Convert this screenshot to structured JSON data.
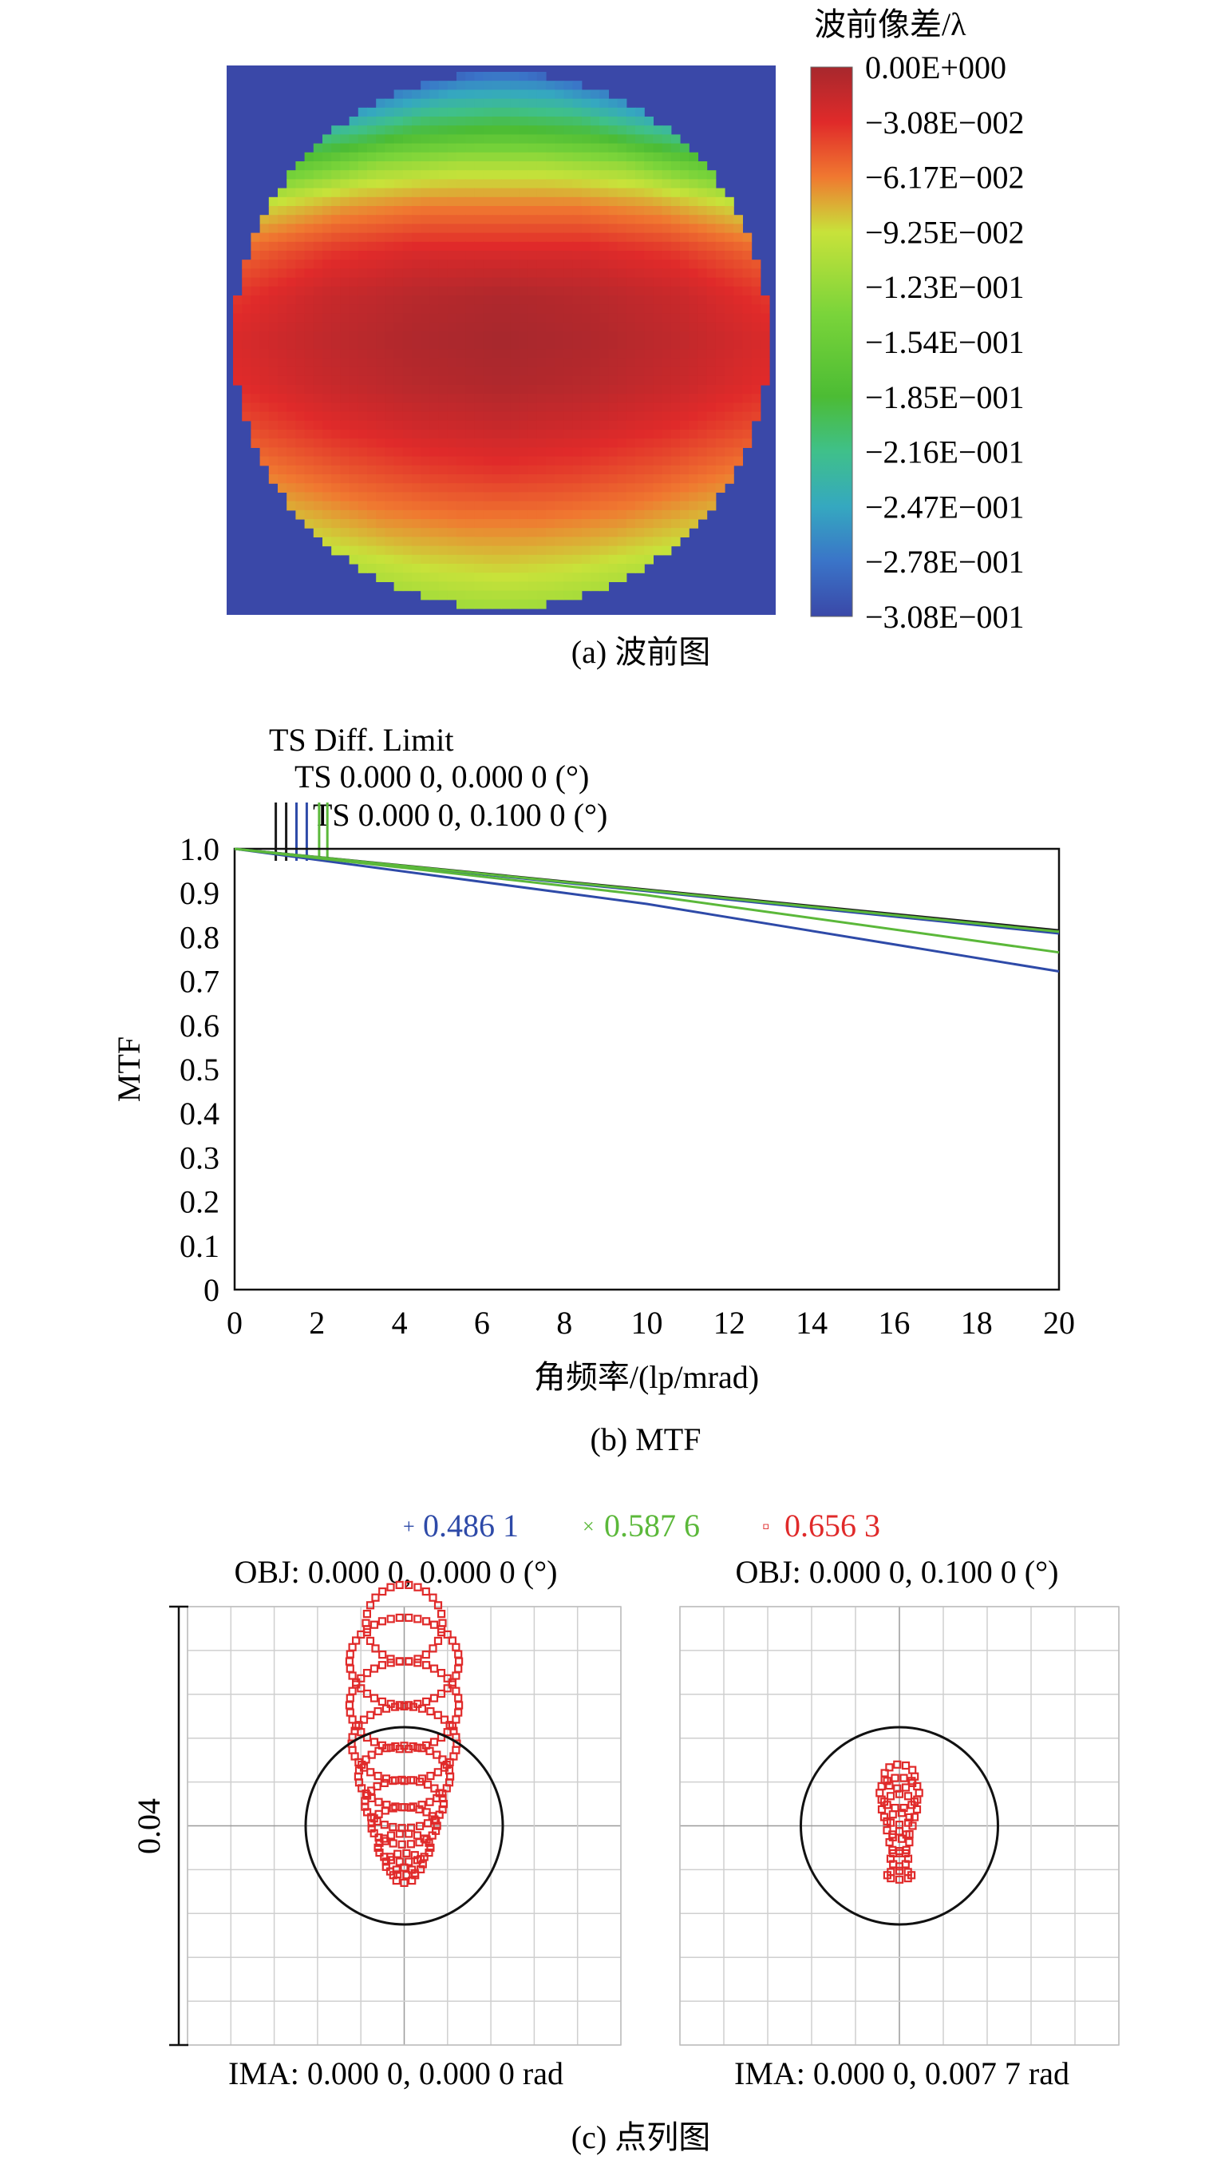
{
  "chart_data": [
    {
      "type": "heatmap",
      "panel_caption": "(a) 波前图",
      "colorbar_title": "波前像差/λ",
      "colorbar_ticks": [
        "0.00E+000",
        "−3.08E−002",
        "−6.17E−002",
        "−9.25E−002",
        "−1.23E−001",
        "−1.54E−001",
        "−1.85E−001",
        "−2.16E−001",
        "−2.47E−001",
        "−2.78E−001",
        "−3.08E−001"
      ],
      "value_range": [
        -0.308,
        0.0
      ],
      "colormap": [
        "#a7282d",
        "#e02a2a",
        "#f07830",
        "#c8e23a",
        "#7ad43a",
        "#4cbc34",
        "#3fc08a",
        "#35a8c0",
        "#3a74c8",
        "#3a48a8"
      ],
      "background_color": "#3a48a8",
      "rows": [
        [
          -0.29,
          -0.28,
          -0.28,
          -0.29
        ],
        [
          -0.24,
          -0.2,
          -0.19,
          -0.2,
          -0.24
        ],
        [
          -0.16,
          -0.13,
          -0.12,
          -0.12,
          -0.13,
          -0.16
        ],
        [
          -0.1,
          -0.08,
          -0.07,
          -0.07,
          -0.07,
          -0.08,
          -0.1
        ],
        [
          -0.06,
          -0.04,
          -0.03,
          -0.03,
          -0.03,
          -0.04,
          -0.06
        ],
        [
          -0.04,
          -0.02,
          -0.01,
          -0.005,
          -0.01,
          -0.02,
          -0.04
        ],
        [
          -0.03,
          -0.015,
          -0.005,
          0.0,
          -0.005,
          -0.015,
          -0.03
        ],
        [
          -0.035,
          -0.02,
          -0.01,
          -0.005,
          -0.01,
          -0.02,
          -0.035
        ],
        [
          -0.05,
          -0.035,
          -0.025,
          -0.02,
          -0.025,
          -0.035,
          -0.05
        ],
        [
          -0.07,
          -0.055,
          -0.045,
          -0.04,
          -0.045,
          -0.055,
          -0.07
        ],
        [
          -0.09,
          -0.075,
          -0.068,
          -0.068,
          -0.075,
          -0.09
        ],
        [
          -0.11,
          -0.1,
          -0.095,
          -0.1,
          -0.11
        ],
        [
          -0.12,
          -0.12,
          -0.12,
          -0.12
        ]
      ]
    },
    {
      "type": "line",
      "panel_caption": "(b) MTF",
      "legend": [
        "TS Diff. Limit",
        "TS 0.000 0, 0.000 0 (°)",
        "TS 0.000 0, 0.100 0 (°)"
      ],
      "xlabel": "角频率/(lp/mrad)",
      "ylabel": "MTF",
      "xlim": [
        0,
        20
      ],
      "ylim": [
        0,
        1.0
      ],
      "xticks": [
        "0",
        "2",
        "4",
        "6",
        "8",
        "10",
        "12",
        "14",
        "16",
        "18",
        "20"
      ],
      "yticks": [
        "0",
        "0.1",
        "0.2",
        "0.3",
        "0.4",
        "0.5",
        "0.6",
        "0.7",
        "0.8",
        "0.9",
        "1.0"
      ],
      "series": [
        {
          "name": "TS Diff. Limit",
          "color": "#1a1a1a",
          "x": [
            0,
            20
          ],
          "y": [
            1.0,
            0.815
          ]
        },
        {
          "color": "#2e4aa8",
          "x": [
            0,
            20
          ],
          "y": [
            1.0,
            0.808
          ]
        },
        {
          "color": "#2e4aa8",
          "x": [
            0,
            10,
            20
          ],
          "y": [
            1.0,
            0.875,
            0.722
          ]
        },
        {
          "color": "#5bb83a",
          "x": [
            0,
            20
          ],
          "y": [
            1.0,
            0.812
          ]
        },
        {
          "color": "#5bb83a",
          "x": [
            0,
            10,
            20
          ],
          "y": [
            1.0,
            0.895,
            0.765
          ]
        }
      ],
      "markers": [
        {
          "color": "#1a1a1a",
          "x": 1.0
        },
        {
          "color": "#1a1a1a",
          "x": 1.25
        },
        {
          "color": "#2e4aa8",
          "x": 1.5
        },
        {
          "color": "#2e4aa8",
          "x": 1.75
        },
        {
          "color": "#5bb83a",
          "x": 2.05
        },
        {
          "color": "#5bb83a",
          "x": 2.25
        }
      ]
    },
    {
      "type": "scatter",
      "panel_caption": "(c) 点列图",
      "wavelengths": [
        {
          "label": "0.486 1",
          "color": "#2e4aa8",
          "symbol": "+"
        },
        {
          "label": "0.587 6",
          "color": "#5bb83a",
          "symbol": "×"
        },
        {
          "label": "0.656 3",
          "color": "#e02a2a",
          "symbol": "▫"
        }
      ],
      "scale_label": "0.04",
      "plots": [
        {
          "obj": "OBJ: 0.000 0, 0.000 0 (°)",
          "ima": "IMA: 0.000 0, 0.000 0 rad",
          "airy_radius": 0.009,
          "rings": [
            {
              "cy": 0.0185,
              "rx": 0.0035,
              "ry": 0.0035
            },
            {
              "cy": 0.015,
              "rx": 0.005,
              "ry": 0.004
            },
            {
              "cy": 0.011,
              "rx": 0.005,
              "ry": 0.004
            },
            {
              "cy": 0.0075,
              "rx": 0.0048,
              "ry": 0.0034
            },
            {
              "cy": 0.0045,
              "rx": 0.0042,
              "ry": 0.0028
            },
            {
              "cy": 0.002,
              "rx": 0.0036,
              "ry": 0.0022
            },
            {
              "cy": 0.0,
              "rx": 0.003,
              "ry": 0.0017
            },
            {
              "cy": -0.002,
              "rx": 0.0024,
              "ry": 0.0013
            },
            {
              "cy": -0.0035,
              "rx": 0.0017,
              "ry": 0.001
            },
            {
              "cy": -0.0045,
              "rx": 0.001,
              "ry": 0.0007
            }
          ]
        },
        {
          "obj": "OBJ: 0.000 0, 0.100 0 (°)",
          "ima": "IMA: 0.000 0, 0.007 7 rad",
          "airy_radius": 0.009,
          "rings": [
            {
              "cy": 0.0045,
              "rx": 0.0014,
              "ry": 0.0011
            },
            {
              "cy": 0.003,
              "rx": 0.0018,
              "ry": 0.0014
            },
            {
              "cy": 0.0015,
              "rx": 0.0016,
              "ry": 0.0014
            },
            {
              "cy": 0.0,
              "rx": 0.0012,
              "ry": 0.0012
            },
            {
              "cy": -0.0015,
              "rx": 0.0009,
              "ry": 0.001
            },
            {
              "cy": -0.003,
              "rx": 0.0008,
              "ry": 0.0007
            },
            {
              "cy": -0.0045,
              "rx": 0.0011,
              "ry": 0.0004
            }
          ]
        }
      ]
    }
  ]
}
